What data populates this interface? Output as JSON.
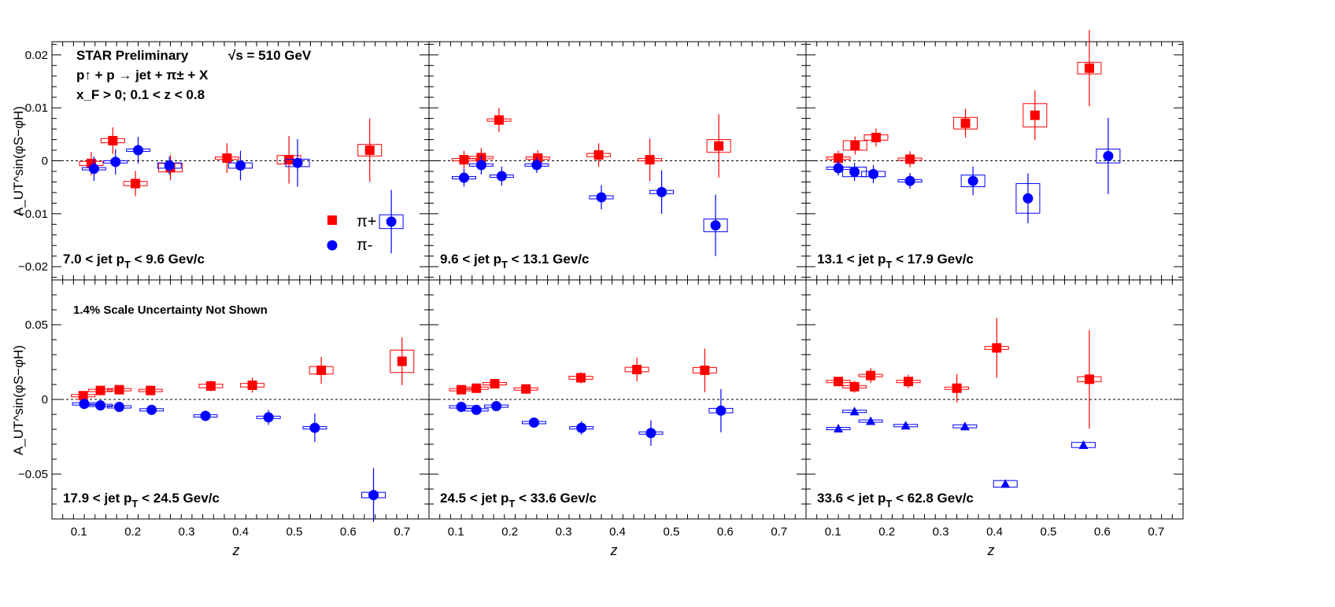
{
  "header": {
    "experiment": "STAR Preliminary",
    "energy": "√s = 510 GeV",
    "reaction": "p↑ + p → jet + π± + X",
    "cuts": "x_F > 0;   0.1 < z < 0.8",
    "scale_note": "1.4% Scale Uncertainty Not Shown"
  },
  "legend": {
    "pip": "π+",
    "pim": "π-"
  },
  "axis": {
    "xlabel": "z",
    "ylabel": "A_UT^sin(φS−φH)",
    "x_ticks": [
      "0.1",
      "0.2",
      "0.3",
      "0.4",
      "0.5",
      "0.6",
      "0.7"
    ],
    "top_y_ticks": [
      "0.02",
      "0.01",
      "0",
      "−0.01",
      "−0.02"
    ],
    "bottom_y_ticks": [
      "0.05",
      "0",
      "−0.05"
    ]
  },
  "colors": {
    "pip": "#ff0000",
    "pim": "#0000ff"
  },
  "chart_data": [
    {
      "type": "scatter",
      "label": "7.0 < jet pT < 9.6 GeV/c",
      "xlim": [
        0.05,
        0.75
      ],
      "ylim": [
        -0.0225,
        0.0225
      ],
      "grid": false,
      "legend_position": "lower-right",
      "zero_line": true,
      "series": [
        {
          "name": "π+",
          "marker": "square",
          "x": [
            0.123,
            0.163,
            0.205,
            0.27,
            0.375,
            0.49,
            0.64
          ],
          "y": [
            -0.0005,
            0.0038,
            -0.0043,
            -0.0013,
            0.0005,
            0.0002,
            0.002
          ],
          "err": [
            0.0022,
            0.0025,
            0.0024,
            0.0024,
            0.0028,
            0.0045,
            0.006
          ],
          "sys": [
            0.0004,
            0.0004,
            0.0004,
            0.0008,
            0.0002,
            0.0008,
            0.0011
          ]
        },
        {
          "name": "π-",
          "marker": "circle",
          "x": [
            0.128,
            0.168,
            0.21,
            0.268,
            0.4,
            0.506,
            0.68
          ],
          "y": [
            -0.0015,
            -0.0002,
            0.002,
            -0.0009,
            -0.0009,
            -0.0004,
            -0.0115
          ],
          "err": [
            0.0023,
            0.0024,
            0.0025,
            0.0017,
            0.0028,
            0.0045,
            0.006
          ],
          "sys": [
            0.0002,
            0.0002,
            0.0002,
            0.0005,
            0.0005,
            0.0007,
            0.0013
          ]
        }
      ]
    },
    {
      "type": "scatter",
      "label": "9.6 < jet pT < 13.1 GeV/c",
      "xlim": [
        0.05,
        0.75
      ],
      "ylim": [
        -0.0225,
        0.0225
      ],
      "grid": false,
      "zero_line": true,
      "series": [
        {
          "name": "π+",
          "marker": "square",
          "x": [
            0.115,
            0.147,
            0.18,
            0.252,
            0.365,
            0.46,
            0.588
          ],
          "y": [
            0.0002,
            0.0006,
            0.0077,
            0.0005,
            0.0011,
            0.0002,
            0.0028
          ],
          "err": [
            0.0017,
            0.0018,
            0.0023,
            0.0015,
            0.0022,
            0.004,
            0.006
          ],
          "sys": [
            0.0002,
            0.0002,
            0.0002,
            0.0002,
            0.0003,
            0.0002,
            0.0012
          ]
        },
        {
          "name": "π-",
          "marker": "circle",
          "x": [
            0.115,
            0.147,
            0.185,
            0.25,
            0.37,
            0.482,
            0.582
          ],
          "y": [
            -0.0032,
            -0.0008,
            -0.0029,
            -0.0008,
            -0.0069,
            -0.0059,
            -0.0122
          ],
          "err": [
            0.0017,
            0.0018,
            0.0018,
            0.0015,
            0.0023,
            0.0041,
            0.0058
          ],
          "sys": [
            0.0002,
            0.0002,
            0.0002,
            0.0002,
            0.0003,
            0.0003,
            0.0012
          ]
        }
      ]
    },
    {
      "type": "scatter",
      "label": "13.1 < jet pT < 17.9 GeV/c",
      "xlim": [
        0.05,
        0.75
      ],
      "ylim": [
        -0.0225,
        0.0225
      ],
      "grid": false,
      "zero_line": true,
      "series": [
        {
          "name": "π+",
          "marker": "square",
          "x": [
            0.11,
            0.141,
            0.18,
            0.243,
            0.346,
            0.475,
            0.576
          ],
          "y": [
            0.0005,
            0.0029,
            0.0044,
            0.0003,
            0.0071,
            0.0086,
            0.0175
          ],
          "err": [
            0.0014,
            0.0017,
            0.0017,
            0.0015,
            0.0027,
            0.0047,
            0.0072
          ],
          "sys": [
            0.0002,
            0.0009,
            0.0005,
            0.0002,
            0.0011,
            0.0022,
            0.0011
          ]
        },
        {
          "name": "π-",
          "marker": "circle",
          "x": [
            0.11,
            0.14,
            0.175,
            0.243,
            0.36,
            0.462,
            0.611
          ],
          "y": [
            -0.0014,
            -0.0021,
            -0.0025,
            -0.0038,
            -0.0038,
            -0.0071,
            0.0009
          ],
          "err": [
            0.0014,
            0.0017,
            0.0017,
            0.0015,
            0.0027,
            0.0047,
            0.0072
          ],
          "sys": [
            0.0002,
            0.0009,
            0.0005,
            0.0002,
            0.0011,
            0.0028,
            0.0013
          ]
        }
      ]
    },
    {
      "type": "scatter",
      "label": "17.9 < jet pT < 24.5 GeV/c",
      "xlim": [
        0.05,
        0.75
      ],
      "ylim": [
        -0.08,
        0.08
      ],
      "grid": false,
      "zero_line": true,
      "series": [
        {
          "name": "π+",
          "marker": "square",
          "x": [
            0.108,
            0.14,
            0.175,
            0.233,
            0.345,
            0.422,
            0.55,
            0.7
          ],
          "y": [
            0.0025,
            0.006,
            0.0065,
            0.006,
            0.009,
            0.0095,
            0.0195,
            0.0255
          ],
          "err": [
            0.0015,
            0.002,
            0.0022,
            0.0025,
            0.0035,
            0.005,
            0.009,
            0.016
          ],
          "sys": [
            0.0005,
            0.0005,
            0.0005,
            0.0005,
            0.0012,
            0.0012,
            0.0025,
            0.0075
          ]
        },
        {
          "name": "π-",
          "marker": "circle",
          "x": [
            0.11,
            0.14,
            0.175,
            0.235,
            0.335,
            0.452,
            0.538,
            0.647
          ],
          "y": [
            -0.003,
            -0.004,
            -0.005,
            -0.007,
            -0.011,
            -0.012,
            -0.019,
            -0.064
          ],
          "err": [
            0.0015,
            0.002,
            0.0022,
            0.0025,
            0.0035,
            0.005,
            0.0095,
            0.018
          ],
          "sys": [
            0.0005,
            0.0005,
            0.0005,
            0.0005,
            0.0005,
            0.0008,
            0.0008,
            0.0018
          ]
        }
      ]
    },
    {
      "type": "scatter",
      "label": "24.5 < jet pT < 33.6 GeV/c",
      "xlim": [
        0.05,
        0.75
      ],
      "ylim": [
        -0.08,
        0.08
      ],
      "grid": false,
      "zero_line": true,
      "series": [
        {
          "name": "π+",
          "marker": "square",
          "x": [
            0.11,
            0.138,
            0.172,
            0.23,
            0.332,
            0.436,
            0.562
          ],
          "y": [
            0.0065,
            0.0075,
            0.0105,
            0.007,
            0.0145,
            0.02,
            0.0195
          ],
          "err": [
            0.0015,
            0.002,
            0.002,
            0.0025,
            0.0038,
            0.008,
            0.0145
          ],
          "sys": [
            0.0005,
            0.0005,
            0.0005,
            0.0005,
            0.001,
            0.0015,
            0.0018
          ]
        },
        {
          "name": "π-",
          "marker": "circle",
          "x": [
            0.11,
            0.138,
            0.175,
            0.245,
            0.333,
            0.462,
            0.592
          ],
          "y": [
            -0.005,
            -0.007,
            -0.0045,
            -0.0155,
            -0.019,
            -0.0225,
            -0.0075
          ],
          "err": [
            0.0015,
            0.002,
            0.002,
            0.0025,
            0.0045,
            0.0085,
            0.0145
          ],
          "sys": [
            0.0005,
            0.0005,
            0.0005,
            0.0005,
            0.0008,
            0.0008,
            0.0015
          ]
        }
      ]
    },
    {
      "type": "scatter",
      "label": "33.6 < jet pT < 62.8 GeV/c",
      "xlim": [
        0.05,
        0.75
      ],
      "ylim": [
        -0.08,
        0.08
      ],
      "grid": false,
      "zero_line": true,
      "series": [
        {
          "name": "π+",
          "marker": "square",
          "x": [
            0.11,
            0.14,
            0.17,
            0.24,
            0.33,
            0.404,
            0.576
          ],
          "y": [
            0.012,
            0.0085,
            0.016,
            0.012,
            0.0075,
            0.0345,
            0.0135
          ],
          "err": [
            0.003,
            0.004,
            0.005,
            0.0045,
            0.0095,
            0.02,
            0.033
          ],
          "sys": [
            0.0005,
            0.0005,
            0.0005,
            0.0005,
            0.0005,
            0.001,
            0.0017
          ]
        },
        {
          "name": "π-",
          "marker": "triangle",
          "x": [
            0.11,
            0.14,
            0.17,
            0.235,
            0.345,
            0.42,
            0.565
          ],
          "y": [
            -0.0195,
            -0.008,
            -0.0145,
            -0.0175,
            -0.018,
            -0.0565,
            -0.0305
          ],
          "err": [
            0.0012,
            0.0012,
            0.0012,
            0.0015,
            0.0015,
            0.0015,
            0.0015
          ],
          "sys": [
            0.0005,
            0.0005,
            0.0005,
            0.0005,
            0.001,
            0.0022,
            0.0017
          ]
        }
      ]
    }
  ]
}
